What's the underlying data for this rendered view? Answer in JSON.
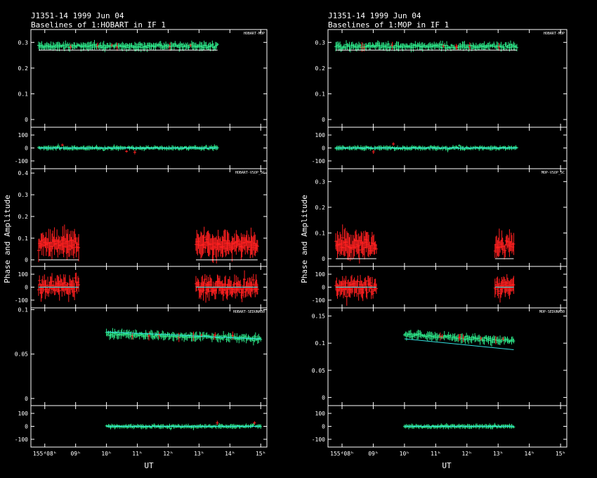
{
  "panels_left": {
    "title_line1": "J1351-14  1999 Jun 04",
    "title_line2": "Baselines of 1:HOBART in IF 1",
    "ylabel": "Phase and Amplitude",
    "xlabel": "UT",
    "x_ticks": [
      "155ᵈ08ʰ",
      "09ʰ",
      "10ʰ",
      "11ʰ",
      "12ʰ",
      "13ʰ",
      "14ʰ",
      "15ʰ"
    ]
  },
  "panels_right": {
    "title_line1": "J1351-14  1999 Jun 04",
    "title_line2": "Baselines of 1:MOP in IF 1",
    "ylabel": "Phase and Amplitude",
    "xlabel": "UT",
    "x_ticks": [
      "155ᵈ08ʰ",
      "09ʰ",
      "10ʰ",
      "11ʰ",
      "12ʰ",
      "13ʰ",
      "14ʰ",
      "15ʰ"
    ]
  },
  "colors": {
    "good": "#2ee88a",
    "flagged": "#ff2020",
    "model": "#33e0e0",
    "axes": "#ffffff",
    "background": "#000000"
  },
  "chart_data": [
    {
      "type": "scatter",
      "figure": "left",
      "baseline": "HOBART-MOP",
      "x_unit": "UT hours",
      "amplitude": {
        "ticks": [
          "0",
          "0.1",
          "0.2",
          "0.3"
        ],
        "ylim": [
          -0.03,
          0.35
        ],
        "model": 0.27,
        "obs_start": 7.8,
        "obs_end": 13.6,
        "mean": 0.285
      },
      "phase": {
        "ticks": [
          "-100",
          "0",
          "100"
        ],
        "ylim": [
          -160,
          160
        ],
        "model": 0,
        "obs_start": 7.8,
        "obs_end": 13.6
      }
    },
    {
      "type": "scatter",
      "figure": "left",
      "baseline": "HOBART-VSOP_SC",
      "x_unit": "UT hours",
      "amplitude": {
        "ticks": [
          "0",
          "0.1",
          "0.2",
          "0.3",
          "0.4"
        ],
        "ylim": [
          -0.03,
          0.42
        ],
        "model": 0.0,
        "segments": [
          [
            7.8,
            9.1
          ],
          [
            12.9,
            14.9
          ]
        ],
        "mean": 0.07
      },
      "phase": {
        "ticks": [
          "-100",
          "0",
          "100"
        ],
        "ylim": [
          -160,
          160
        ],
        "model": 0,
        "segments": [
          [
            7.8,
            9.1
          ],
          [
            12.9,
            14.9
          ]
        ]
      }
    },
    {
      "type": "scatter",
      "figure": "left",
      "baseline": "HOBART-SEDUNA30",
      "x_unit": "UT hours",
      "amplitude": {
        "ticks": [
          "0",
          "0.05",
          "0.1"
        ],
        "ylim": [
          -0.008,
          0.102
        ],
        "model_start": 0.075,
        "model_end": 0.067,
        "obs_start": 10.0,
        "obs_end": 15.0,
        "mean": 0.07
      },
      "phase": {
        "ticks": [
          "-100",
          "0",
          "100"
        ],
        "ylim": [
          -160,
          160
        ],
        "model": 0,
        "obs_start": 10.0,
        "obs_end": 15.0
      }
    },
    {
      "type": "scatter",
      "figure": "right",
      "baseline": "HOBART-MOP",
      "x_unit": "UT hours",
      "amplitude": {
        "ticks": [
          "0",
          "0.1",
          "0.2",
          "0.3"
        ],
        "ylim": [
          -0.03,
          0.35
        ],
        "model": 0.27,
        "obs_start": 7.8,
        "obs_end": 13.6,
        "mean": 0.285
      },
      "phase": {
        "ticks": [
          "-100",
          "0",
          "100"
        ],
        "ylim": [
          -160,
          160
        ],
        "model": 0,
        "obs_start": 7.8,
        "obs_end": 13.6
      }
    },
    {
      "type": "scatter",
      "figure": "right",
      "baseline": "MOP-VSOP_SC",
      "x_unit": "UT hours",
      "amplitude": {
        "ticks": [
          "0",
          "0.1",
          "0.2",
          "0.3"
        ],
        "ylim": [
          -0.03,
          0.35
        ],
        "model": 0.0,
        "segments": [
          [
            7.8,
            9.1
          ],
          [
            12.9,
            13.5
          ]
        ],
        "mean": 0.05
      },
      "phase": {
        "ticks": [
          "-100",
          "0",
          "100"
        ],
        "ylim": [
          -160,
          160
        ],
        "model": 0,
        "segments": [
          [
            7.8,
            9.1
          ],
          [
            12.9,
            13.5
          ]
        ]
      }
    },
    {
      "type": "scatter",
      "figure": "right",
      "baseline": "MOP-SEDUNA30",
      "x_unit": "UT hours",
      "amplitude": {
        "ticks": [
          "0",
          "0.05",
          "0.1",
          "0.15"
        ],
        "ylim": [
          -0.015,
          0.165
        ],
        "model_start": 0.108,
        "model_end": 0.088,
        "obs_start": 10.0,
        "obs_end": 13.5,
        "mean": 0.11
      },
      "phase": {
        "ticks": [
          "-100",
          "0",
          "100"
        ],
        "ylim": [
          -160,
          160
        ],
        "model": 0,
        "obs_start": 10.0,
        "obs_end": 13.5
      }
    }
  ]
}
